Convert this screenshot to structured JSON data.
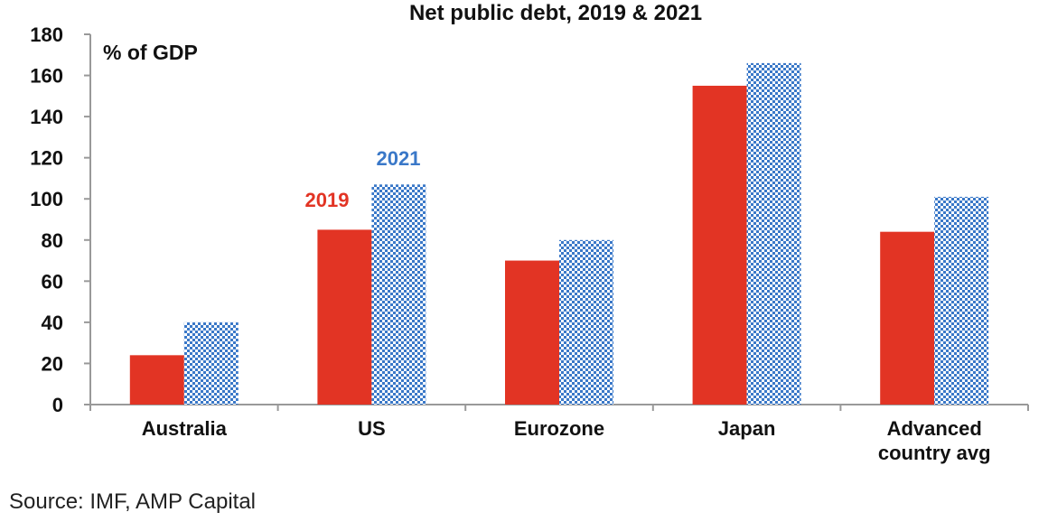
{
  "colors": {
    "series_2019": "#e23424",
    "series_2021": "#3a78c8",
    "series_2021_bg": "#ffffff",
    "axis": "#999999",
    "text": "#111111"
  },
  "chart_data": {
    "type": "bar",
    "title": "Net public debt, 2019 & 2021",
    "unit_label": "% of GDP",
    "xlabel": "",
    "ylabel": "",
    "ylim": [
      0,
      180
    ],
    "yticks": [
      0,
      20,
      40,
      60,
      80,
      100,
      120,
      140,
      160,
      180
    ],
    "grid": false,
    "categories": [
      [
        "Australia"
      ],
      [
        "US"
      ],
      [
        "Eurozone"
      ],
      [
        "Japan"
      ],
      [
        "Advanced",
        "country avg"
      ]
    ],
    "series": [
      {
        "name": "2019",
        "values": [
          24,
          85,
          70,
          155,
          84
        ]
      },
      {
        "name": "2021",
        "values": [
          40,
          107,
          80,
          166,
          101
        ]
      }
    ],
    "source": "Source: IMF, AMP Capital"
  }
}
